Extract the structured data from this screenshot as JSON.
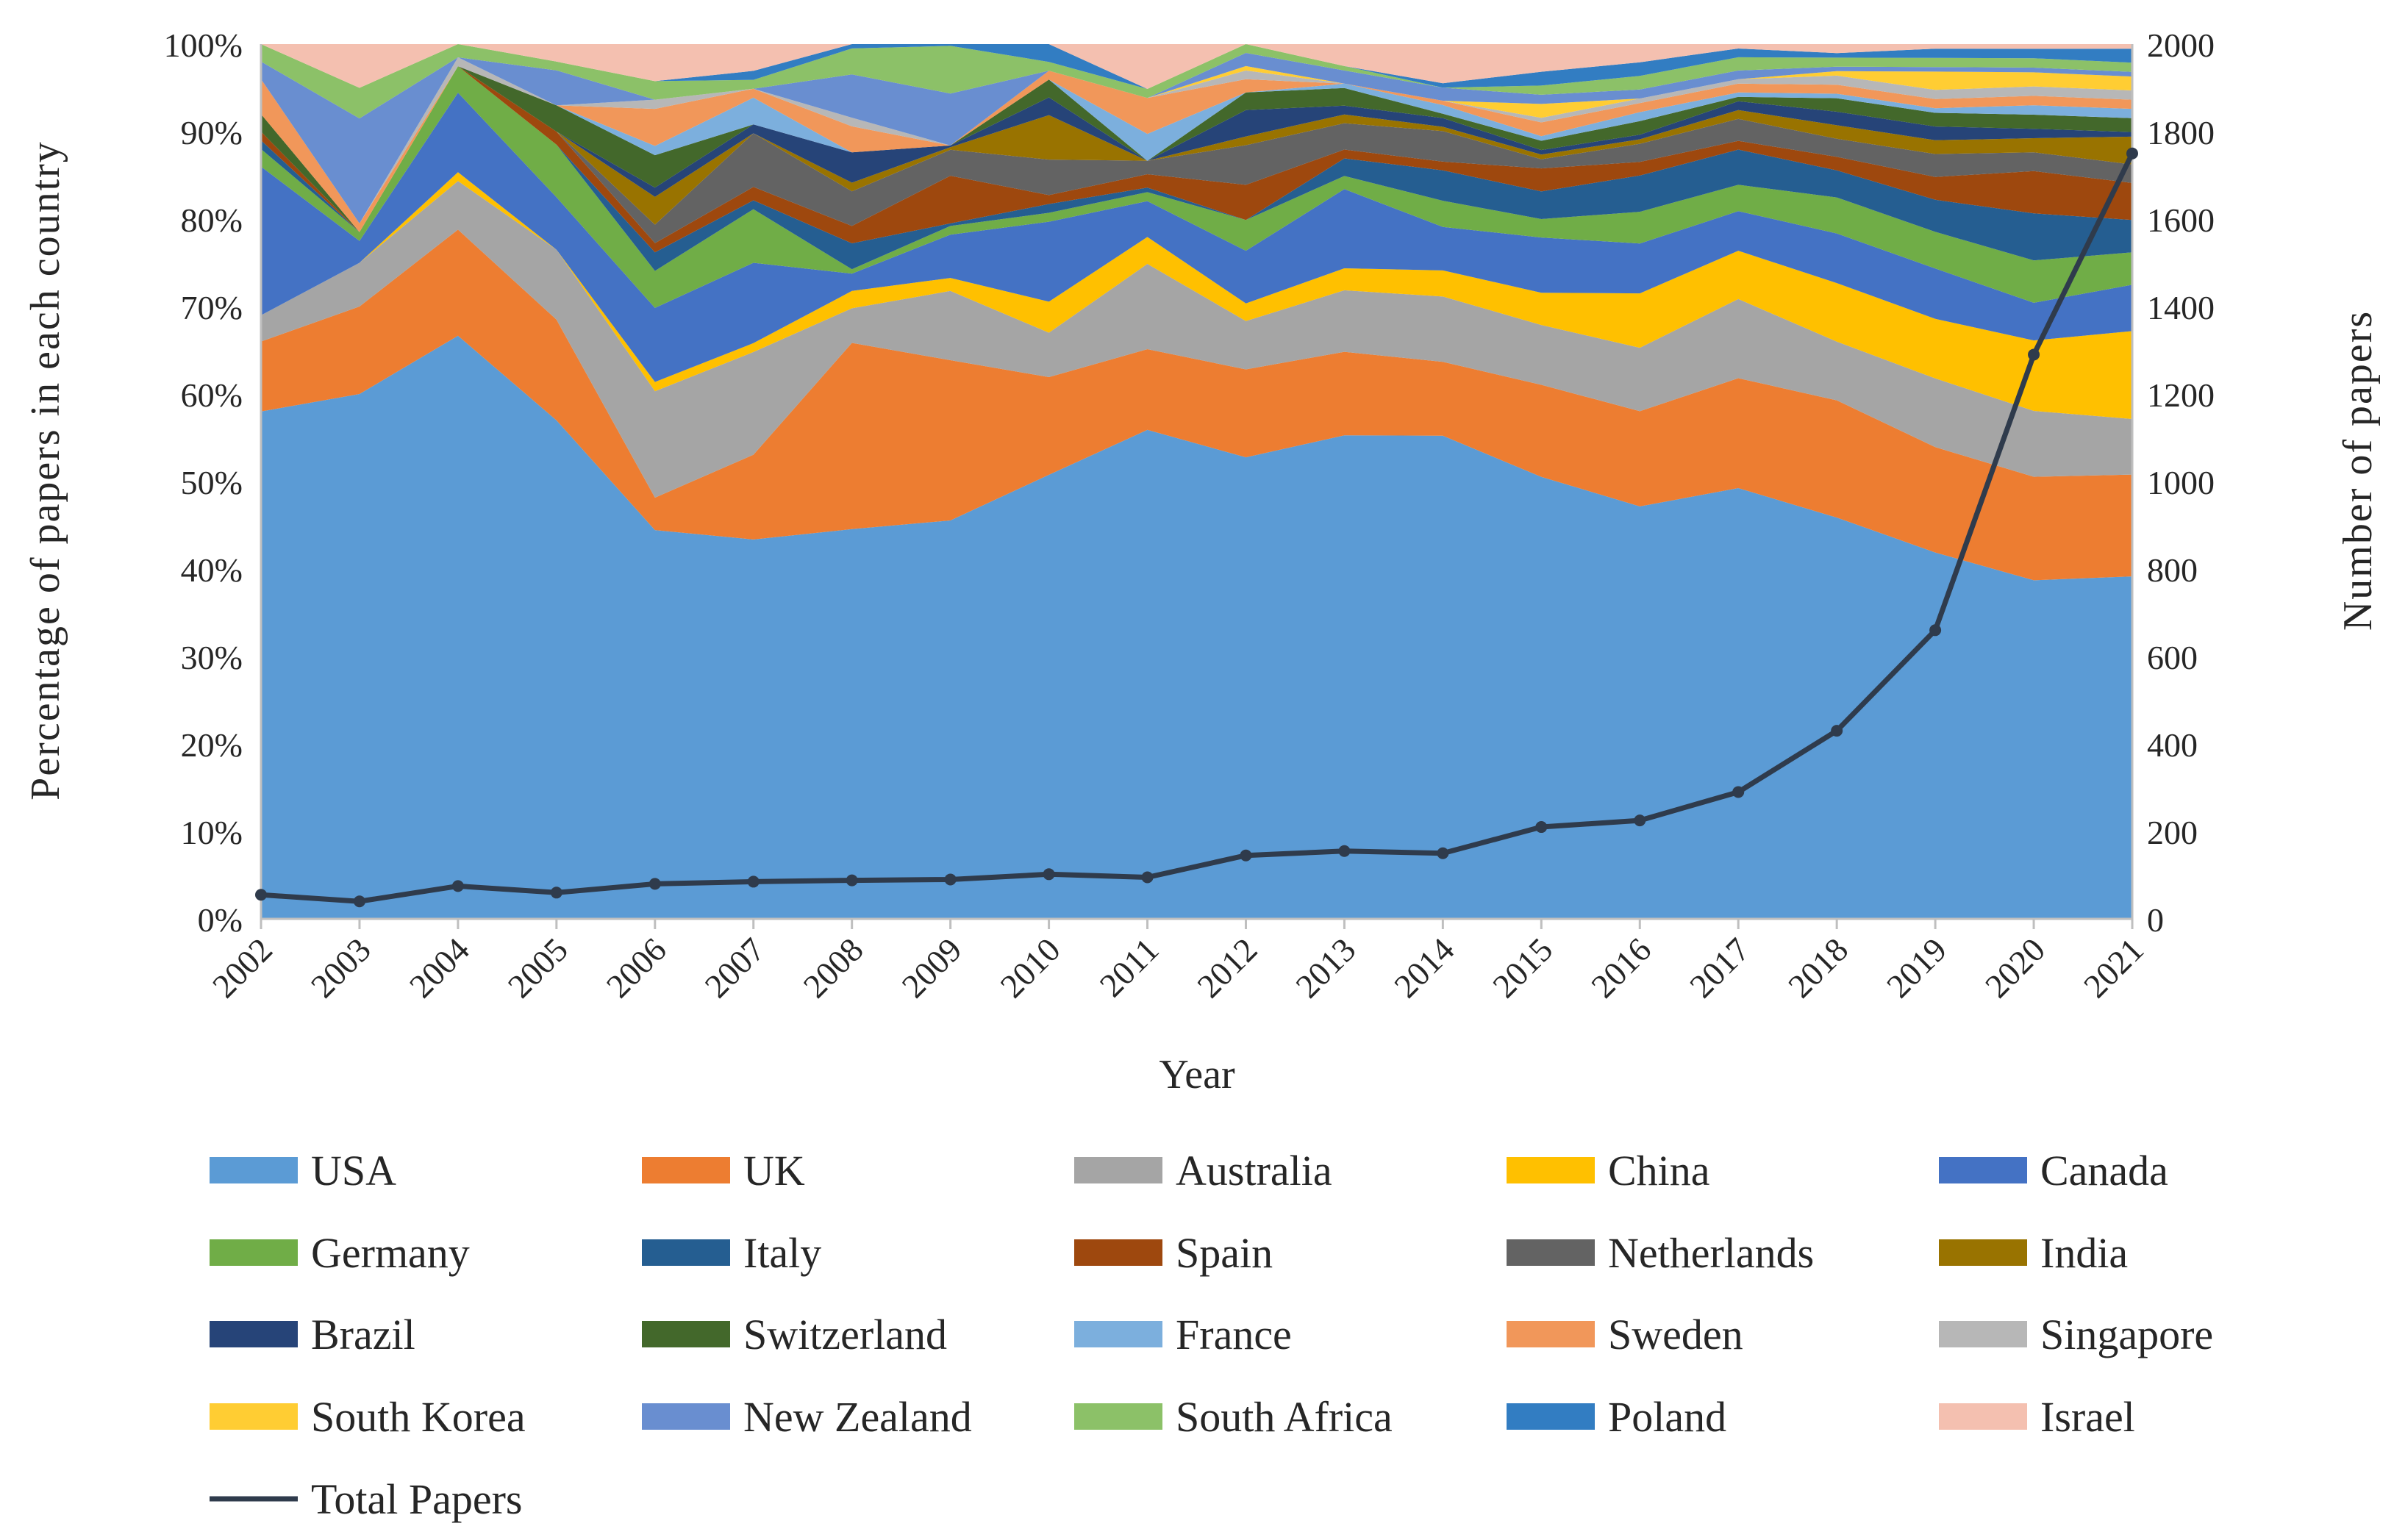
{
  "chart_data": {
    "type": "area",
    "stacked": "percent",
    "xlabel": "Year",
    "ylabel": "Percentage of papers in each country",
    "y2label": "Number of papers",
    "categories": [
      "2002",
      "2003",
      "2004",
      "2005",
      "2006",
      "2007",
      "2008",
      "2009",
      "2010",
      "2011",
      "2012",
      "2013",
      "2014",
      "2015",
      "2016",
      "2017",
      "2018",
      "2019",
      "2020",
      "2021"
    ],
    "y_ticks": [
      "0%",
      "10%",
      "20%",
      "30%",
      "40%",
      "50%",
      "60%",
      "70%",
      "80%",
      "90%",
      "100%"
    ],
    "y2_ticks": [
      "0",
      "200",
      "400",
      "600",
      "800",
      "1000",
      "1200",
      "1400",
      "1600",
      "1800",
      "2000"
    ],
    "ylim": [
      0,
      100
    ],
    "y2lim": [
      0,
      2000
    ],
    "series": [
      {
        "name": "USA",
        "color": "#5B9BD5",
        "values": [
          58,
          60,
          66,
          57,
          42,
          42.5,
          45,
          46,
          50,
          54.5,
          52.5,
          55,
          55.5,
          48,
          45.5,
          49,
          44.5,
          40,
          36,
          37
        ]
      },
      {
        "name": "UK",
        "color": "#ED7D31",
        "values": [
          8,
          10,
          12,
          11.5,
          3.5,
          9.5,
          21.5,
          18.5,
          11,
          9,
          10,
          9.5,
          8.5,
          10,
          10.5,
          12.5,
          13,
          11.5,
          11,
          11
        ]
      },
      {
        "name": "Australia",
        "color": "#A5A5A5",
        "values": [
          3,
          5,
          5.5,
          8,
          11.5,
          11.5,
          4,
          8,
          5,
          9.5,
          5.5,
          7,
          7.5,
          6.5,
          7,
          9,
          6.5,
          7.5,
          7,
          6
        ]
      },
      {
        "name": "China",
        "color": "#FFC000",
        "values": [
          0,
          0,
          1,
          0,
          1,
          1,
          2,
          1.5,
          3.5,
          3,
          2,
          2.5,
          3,
          3.5,
          6,
          5.5,
          6.5,
          6.5,
          7.5,
          9.5
        ]
      },
      {
        "name": "Canada",
        "color": "#4472C4",
        "values": [
          17,
          2.5,
          9,
          6,
          8,
          9,
          2,
          5,
          9,
          4,
          6,
          9,
          5,
          6,
          5.5,
          4.5,
          5.5,
          5.5,
          4,
          5
        ]
      },
      {
        "name": "Germany",
        "color": "#70AD47",
        "values": [
          2,
          1,
          3,
          6,
          4,
          6,
          0.5,
          1,
          1,
          1,
          3.5,
          1.5,
          3,
          2,
          3.5,
          3,
          4,
          4,
          4.5,
          3.5
        ]
      },
      {
        "name": "Italy",
        "color": "#255E91",
        "values": [
          1,
          0,
          0,
          0,
          2,
          1,
          3,
          0.3,
          1,
          0.5,
          0,
          2,
          3.5,
          3,
          4,
          4,
          3,
          3.5,
          5,
          3.5
        ]
      },
      {
        "name": "Spain",
        "color": "#9E480E",
        "values": [
          1,
          0,
          0,
          1.5,
          1,
          1.5,
          2,
          5.5,
          1,
          1.5,
          4,
          1,
          1,
          2.5,
          1.5,
          1,
          1.5,
          2.5,
          4.5,
          4
        ]
      },
      {
        "name": "Netherlands",
        "color": "#636363",
        "values": [
          0,
          0,
          0,
          0,
          2,
          6,
          4,
          3,
          4,
          1.5,
          4.5,
          3,
          3.5,
          1,
          2,
          2.5,
          2,
          2.5,
          2,
          2
        ]
      },
      {
        "name": "India",
        "color": "#997300",
        "values": [
          0,
          0,
          0,
          0,
          3,
          0,
          1,
          0.3,
          5,
          0,
          1,
          1,
          0.5,
          0.5,
          0.5,
          1,
          1.5,
          1.5,
          1.5,
          3
        ]
      },
      {
        "name": "Brazil",
        "color": "#264478",
        "values": [
          0,
          0,
          0,
          0,
          1,
          1,
          3.5,
          0.2,
          2,
          0,
          3,
          1,
          1,
          0.5,
          0.5,
          1,
          1.5,
          1.5,
          1,
          0.5
        ]
      },
      {
        "name": "Switzerland",
        "color": "#43682B",
        "values": [
          2,
          0,
          0,
          3,
          3.5,
          0,
          0,
          0,
          2,
          0,
          2,
          2,
          0.5,
          1,
          1.5,
          0.5,
          1.5,
          1.5,
          1.5,
          1.5
        ]
      },
      {
        "name": "France",
        "color": "#7CAFDD",
        "values": [
          0,
          0,
          0,
          0,
          1,
          3,
          0,
          0,
          0,
          3,
          0,
          0.5,
          1,
          0.5,
          1,
          0.5,
          0.5,
          0.5,
          1,
          1
        ]
      },
      {
        "name": "Sweden",
        "color": "#F1975A",
        "values": [
          4,
          1,
          0,
          0,
          4,
          1,
          3,
          0,
          1,
          4,
          1.5,
          0,
          0.5,
          1.5,
          1,
          1,
          1,
          1,
          1,
          1
        ]
      },
      {
        "name": "Singapore",
        "color": "#B7B7B7",
        "values": [
          0,
          0,
          1,
          0,
          1,
          0,
          1,
          0,
          0,
          0,
          1,
          0,
          0,
          0.5,
          0.5,
          0.5,
          1,
          1,
          1,
          1
        ]
      },
      {
        "name": "South Korea",
        "color": "#FFCD33",
        "values": [
          0,
          0,
          0,
          0,
          0,
          0,
          0,
          0,
          0,
          0,
          0.5,
          0,
          0,
          1.5,
          0,
          0,
          0.5,
          2,
          1.5,
          1.5
        ]
      },
      {
        "name": "New Zealand",
        "color": "#698ED0",
        "values": [
          2,
          12,
          0,
          4,
          0,
          0,
          5,
          6,
          0,
          0,
          1.5,
          1.5,
          1.5,
          1,
          1,
          1,
          0.5,
          0.5,
          0.5,
          0.5
        ]
      },
      {
        "name": "South Africa",
        "color": "#8CC168",
        "values": [
          2,
          3.5,
          1.5,
          1,
          2,
          1,
          3,
          5.5,
          1,
          1,
          1,
          0.5,
          0,
          1,
          1.5,
          1.5,
          1,
          1,
          1,
          1
        ]
      },
      {
        "name": "Poland",
        "color": "#327DC2",
        "values": [
          0,
          0,
          0,
          0,
          0,
          1,
          0.5,
          0.2,
          2,
          0,
          0,
          0,
          0.5,
          1.5,
          1.5,
          1,
          0.5,
          1,
          1,
          1.5
        ]
      },
      {
        "name": "Israel",
        "color": "#F4C0B0",
        "values": [
          0,
          5,
          0,
          2,
          4,
          3,
          0,
          0,
          0,
          5,
          0,
          2.5,
          4.5,
          3,
          2,
          0.5,
          1,
          0.5,
          0.5,
          0.5
        ]
      }
    ],
    "line": {
      "name": "Total Papers",
      "color": "#2F3B4C",
      "values": [
        55,
        40,
        75,
        60,
        80,
        85,
        88,
        90,
        102,
        95,
        145,
        155,
        150,
        210,
        225,
        290,
        430,
        660,
        1290,
        1750
      ]
    },
    "legend_position": "bottom"
  }
}
